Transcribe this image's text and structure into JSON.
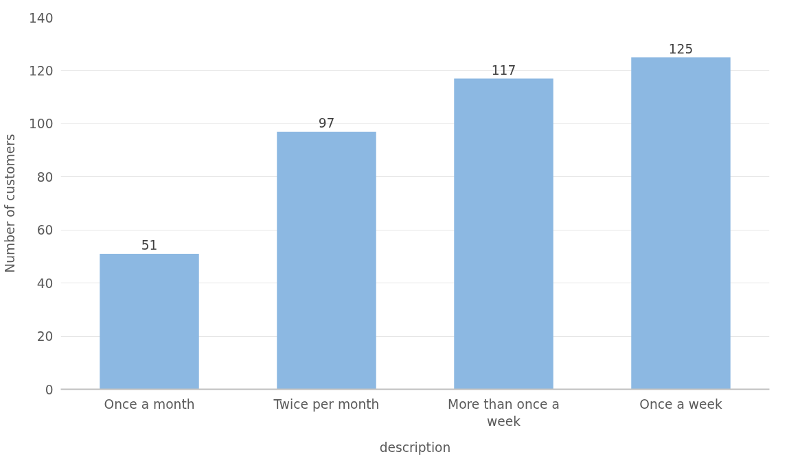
{
  "chart_data": {
    "type": "bar",
    "xlabel": "description",
    "ylabel": "Number of customers",
    "categories": [
      "Once a month",
      "Twice per month",
      "More than once a week",
      "Once a week"
    ],
    "values": [
      51,
      97,
      117,
      125
    ],
    "color": "#8cb8e2",
    "ylim": [
      0,
      140
    ],
    "yticks": [
      0,
      20,
      40,
      60,
      80,
      100,
      120,
      140
    ],
    "grid": "y",
    "data_labels": true
  }
}
